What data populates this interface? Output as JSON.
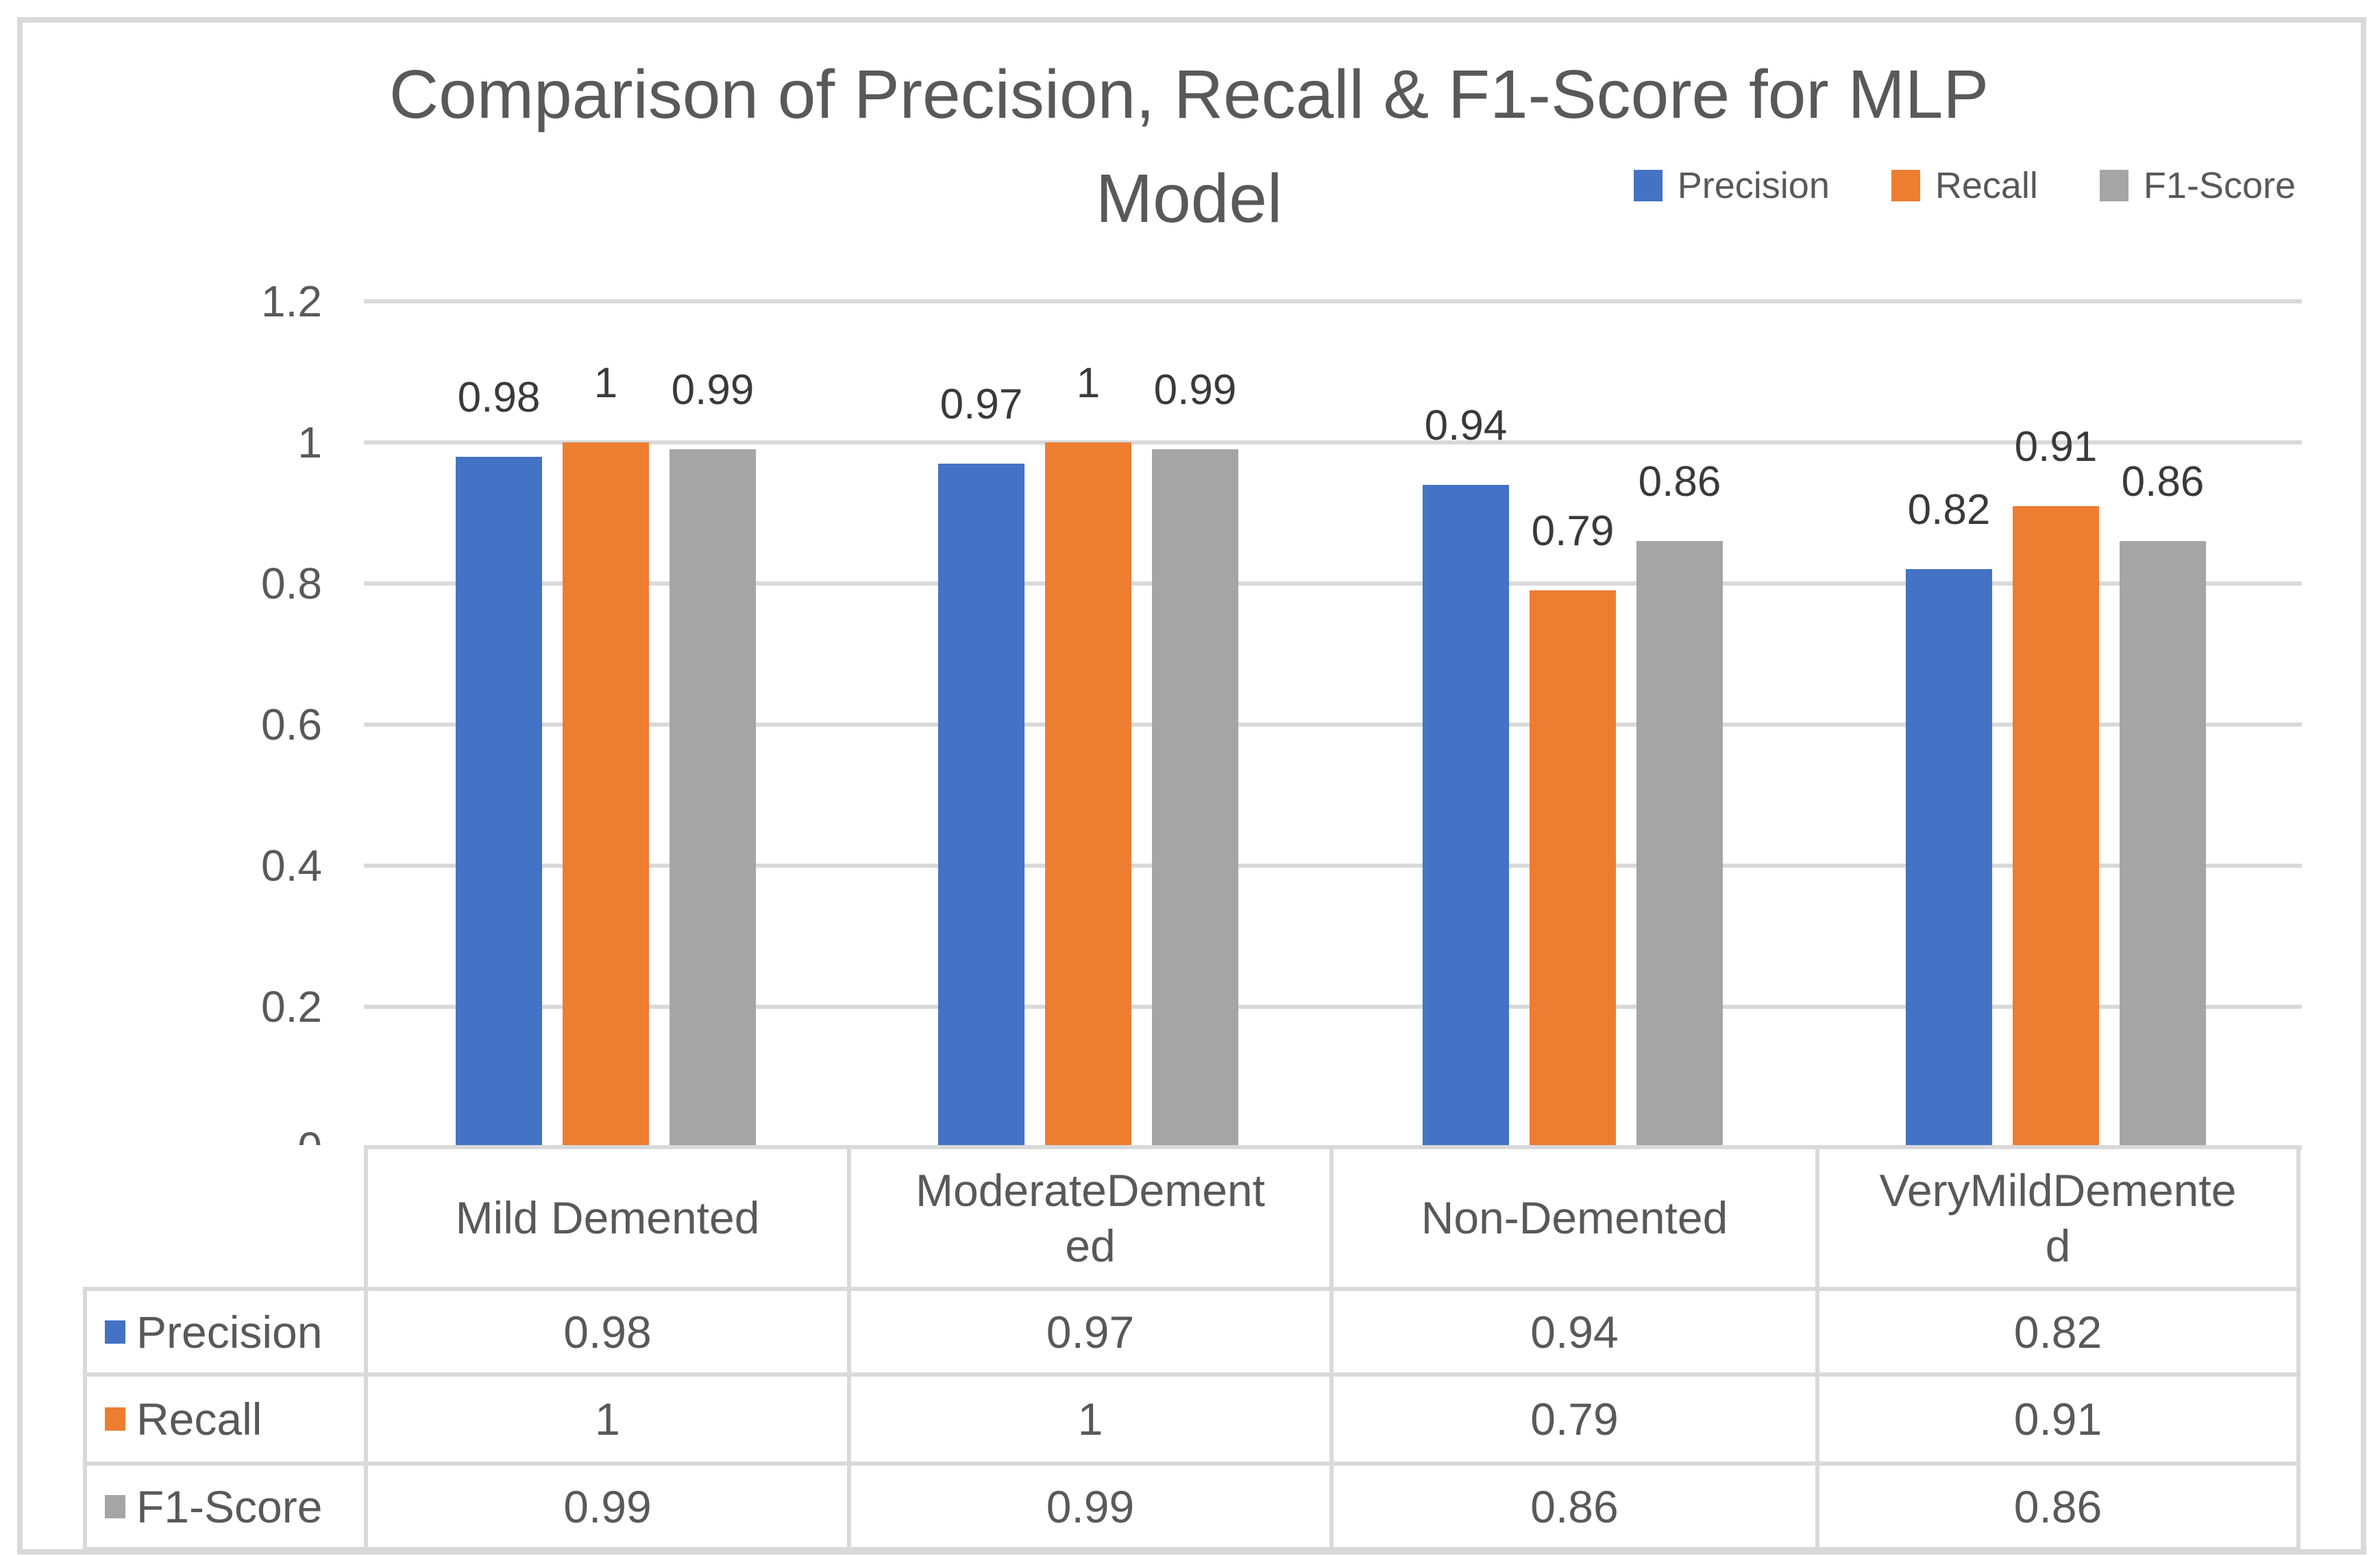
{
  "title": {
    "line1": "Comparison of Precision, Recall & F1-Score for MLP",
    "line2": "Model"
  },
  "colors": {
    "precision": "#4472C4",
    "recall": "#ED7D31",
    "f1_score": "#A5A5A5",
    "text": "#595959",
    "data_label_text": "#3A3A3A",
    "gridline": "#D9D9D9",
    "table_border": "#D9D9D9",
    "figure_border": "#D9D9D9"
  },
  "chart_data": {
    "type": "bar",
    "title": "Comparison of Precision, Recall & F1-Score for MLP Model",
    "xlabel": "",
    "ylabel": "",
    "ylim": [
      0,
      1.2
    ],
    "grid": true,
    "legend_position": "top-right",
    "categories": [
      "Mild Demented",
      "ModerateDemented",
      "Non-Demented",
      "VeryMildDemented"
    ],
    "series": [
      {
        "name": "Precision",
        "color": "#4472C4",
        "values": [
          0.98,
          0.97,
          0.94,
          0.82
        ]
      },
      {
        "name": "Recall",
        "color": "#ED7D31",
        "values": [
          1,
          1,
          0.79,
          0.91
        ]
      },
      {
        "name": "F1-Score",
        "color": "#A5A5A5",
        "values": [
          0.99,
          0.99,
          0.86,
          0.86
        ]
      }
    ],
    "data_labels": [
      [
        "0.98",
        "0.97",
        "0.94",
        "0.82"
      ],
      [
        "1",
        "1",
        "0.79",
        "0.91"
      ],
      [
        "0.99",
        "0.99",
        "0.86",
        "0.86"
      ]
    ],
    "yticks": [
      {
        "label": "1.2",
        "value": 1.2
      },
      {
        "label": "1",
        "value": 1.0
      },
      {
        "label": "0.8",
        "value": 0.8
      },
      {
        "label": "0.6",
        "value": 0.6
      },
      {
        "label": "0.4",
        "value": 0.4
      },
      {
        "label": "0.2",
        "value": 0.2
      },
      {
        "label": "0",
        "value": 0.0
      }
    ]
  }
}
